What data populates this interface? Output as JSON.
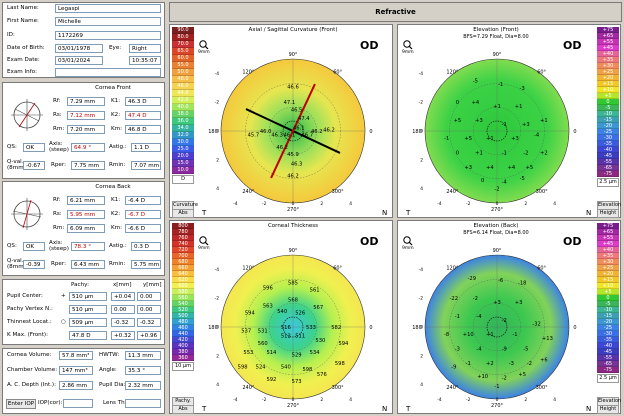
{
  "patient": {
    "last_name_label": "Last Name:",
    "last_name": "Legaspi",
    "first_name_label": "First Name:",
    "first_name": "Michelle",
    "id_label": "ID:",
    "id": "1172269",
    "dob_label": "Date of Birth:",
    "dob": "03/01/1978",
    "eye_label": "Eye:",
    "eye": "Right",
    "exam_date_label": "Exam Date:",
    "exam_date": "03/01/2024",
    "exam_time": "10:35:07",
    "exam_info_label": "Exam Info:",
    "exam_info": ""
  },
  "cornea_front": {
    "title": "Cornea Front",
    "rf_label": "Rf:",
    "rf": "7.29 mm",
    "k1_label": "K1:",
    "k1": "46.3 D",
    "rs_label": "Rs:",
    "rs": "7.12 mm",
    "k2_label": "K2:",
    "k2": "47.4 D",
    "rm_label": "Rm:",
    "rm": "7.20 mm",
    "km_label": "Km:",
    "km": "46.8 D",
    "qs_label": "QS:",
    "qs": "OK",
    "axis_label": "Axis: (steep)",
    "axis": "64.9 °",
    "astig_label": "Astig.:",
    "astig": "1.1 D",
    "qval_label": "Q-val. (8mm)",
    "qval": "-0.67",
    "rper_label": "Rper:",
    "rper": "7.75 mm",
    "rmin_label": "Rmin:",
    "rmin": "7.07 mm"
  },
  "cornea_back": {
    "title": "Cornea Back",
    "rf_label": "Rf:",
    "rf": "6.21 mm",
    "k1_label": "K1:",
    "k1": "-6.4 D",
    "rs_label": "Rs:",
    "rs": "5.95 mm",
    "k2_label": "K2:",
    "k2": "-6.7 D",
    "rm_label": "Rm:",
    "rm": "6.09 mm",
    "km_label": "Km:",
    "km": "-6.6 D",
    "qs_label": "QS:",
    "qs": "OK",
    "axis_label": "Axis: (steep)",
    "axis": "78.3 °",
    "astig_label": "Astig.:",
    "astig": "0.3 D",
    "qval_label": "Q-val. (8mm)",
    "qval": "-0.39",
    "rper_label": "Rper:",
    "rper": "6.43 mm",
    "rmin_label": "Rmin:",
    "rmin": "5.75 mm"
  },
  "pachy": {
    "col_pachy": "Pachy:",
    "col_x": "x[mm]",
    "col_y": "y[mm]",
    "rows": [
      {
        "label": "Pupil Center:",
        "sym": "+",
        "pachy": "510 µm",
        "x": "+0.04",
        "y": "0.00"
      },
      {
        "label": "Pachy Vertex N.:",
        "sym": "",
        "pachy": "510 µm",
        "x": "0.00",
        "y": "0.00"
      },
      {
        "label": "Thinnest Locat.:",
        "sym": "○",
        "pachy": "509 µm",
        "x": "-0.32",
        "y": "-0.32"
      },
      {
        "label": "K Max. (Front):",
        "sym": "",
        "pachy": "47.8 D",
        "x": "+0.32",
        "y": "+0.96"
      }
    ]
  },
  "volumes": {
    "cornea_volume_label": "Cornea Volume:",
    "cornea_volume": "57.8 mm³",
    "hwtw_label": "HWTW:",
    "hwtw": "11.3 mm",
    "chamber_volume_label": "Chamber Volume:",
    "chamber_volume": "147 mm³",
    "angle_label": "Angle:",
    "angle": "35.3 °",
    "acd_label": "A. C. Depth (Int.):",
    "acd": "2.86 mm",
    "pupil_dia_label": "Pupil Dia:",
    "pupil_dia": "2.32 mm",
    "iop_label": "Enter IOP",
    "iopcor_label": "IOP(cor):",
    "iopcor": "",
    "lens_th_label": "Lens Th.:",
    "lens_th": ""
  },
  "header": {
    "title": "Refractive"
  },
  "maps": {
    "axial": {
      "title": "Axial / Sagittal Curvature (Front)",
      "eye": "OD",
      "zoom": "9mm",
      "scale_values": [
        "90.0",
        "80.0",
        "70.0",
        "65.0",
        "60.0",
        "55.0",
        "50.0",
        "48.0",
        "46.0",
        "44.0",
        "42.0",
        "40.0",
        "38.0",
        "36.0",
        "34.0",
        "32.0",
        "30.0",
        "25.0",
        "20.0",
        "15.0",
        "10.0"
      ],
      "unit": "D",
      "footer": [
        "Curvature",
        "Abs"
      ],
      "angles": {
        "top": "90°",
        "right": "0",
        "left": "180",
        "bottom": "270°",
        "tl": "120°",
        "tr": "60°",
        "bl": "240°",
        "br": "300°"
      },
      "corners": {
        "left": "T",
        "right": "N"
      },
      "axis_ticks": [
        "-4",
        "-2",
        "0",
        "2",
        "4"
      ],
      "values": [
        "46.6",
        "47.1",
        "46.5",
        "45.7",
        "46.0",
        "46.3",
        "46.1",
        "46.1",
        "46.7",
        "46.2",
        "46.2",
        "47.4",
        "46.2",
        "45.9",
        "46.3",
        "46.2"
      ]
    },
    "thickness": {
      "title": "Corneal Thickness",
      "eye": "OD",
      "zoom": "9mm",
      "scale_values": [
        "800",
        "780",
        "760",
        "740",
        "720",
        "700",
        "680",
        "660",
        "640",
        "620",
        "600",
        "580",
        "560",
        "540",
        "520",
        "500",
        "480",
        "460",
        "440",
        "420",
        "400",
        "380",
        "360"
      ],
      "unit": "10 µm",
      "footer": [
        "Pachy.",
        "Abs"
      ],
      "angles": {
        "top": "90°",
        "right": "0",
        "left": "180",
        "bottom": "270°",
        "tl": "120°",
        "tr": "60°",
        "bl": "240°",
        "br": "300°"
      },
      "corners": {
        "left": "T",
        "right": "N"
      },
      "axis_ticks": [
        "-4",
        "-2",
        "0",
        "2",
        "4"
      ],
      "values": [
        "596",
        "585",
        "561",
        "594",
        "563",
        "568",
        "540",
        "526",
        "567",
        "537",
        "531",
        "516",
        "533",
        "582",
        "560",
        "512",
        "511",
        "530",
        "594",
        "553",
        "514",
        "529",
        "534",
        "524",
        "540",
        "598",
        "592",
        "573",
        "576",
        "598",
        "598"
      ]
    },
    "elev_front": {
      "title": "Elevation (Front)",
      "subtitle": "BFS=7.29 Float, Dia=8.00",
      "eye": "OD",
      "zoom": "9mm",
      "scale_values": [
        "+75",
        "+65",
        "+55",
        "+45",
        "+40",
        "+35",
        "+30",
        "+25",
        "+20",
        "+15",
        "+10",
        "+5",
        "0",
        "-5",
        "-10",
        "-15",
        "-20",
        "-25",
        "-30",
        "-35",
        "-40",
        "-45",
        "-55",
        "-65",
        "-75"
      ],
      "unit": "2.5 µm",
      "footer": [
        "Elevation",
        "Height"
      ],
      "angles": {
        "top": "90°",
        "right": "0",
        "left": "180",
        "bottom": "270°",
        "tl": "120°",
        "tr": "60°",
        "bl": "240°",
        "br": "300°"
      },
      "corners": {
        "left": "T",
        "right": "N"
      },
      "axis_ticks": [
        "-4",
        "-2",
        "0",
        "2",
        "4"
      ],
      "values": [
        "-5",
        "-1",
        "-3",
        "0",
        "+4",
        "+1",
        "+1",
        "+5",
        "+3",
        "-1",
        "+3",
        "+1",
        "-1",
        "+5",
        "+1",
        "+3",
        "-4",
        "0",
        "+1",
        "-1",
        "-2",
        "+2",
        "+3",
        "+4",
        "+4",
        "+5",
        "0",
        "-4",
        "-5",
        "-2"
      ]
    },
    "elev_back": {
      "title": "Elevation (Back)",
      "subtitle": "BFS=6.14 Float, Dia=8.00",
      "eye": "OD",
      "zoom": "9mm",
      "scale_values": [
        "+75",
        "+65",
        "+55",
        "+45",
        "+40",
        "+35",
        "+30",
        "+25",
        "+20",
        "+15",
        "+10",
        "+5",
        "0",
        "-5",
        "-10",
        "-15",
        "-20",
        "-25",
        "-30",
        "-35",
        "-40",
        "-45",
        "-55",
        "-65",
        "-75"
      ],
      "unit": "2.5 µm",
      "footer": [
        "Elevation",
        "Height"
      ],
      "angles": {
        "top": "90°",
        "right": "0",
        "left": "180",
        "bottom": "270°",
        "tl": "120°",
        "tr": "60°",
        "bl": "240°",
        "br": "300°"
      },
      "corners": {
        "left": "T",
        "right": "N"
      },
      "axis_ticks": [
        "-4",
        "-2",
        "0",
        "2",
        "4"
      ],
      "values": [
        "-29",
        "-6",
        "-18",
        "-22",
        "-2",
        "+3",
        "+3",
        "-1",
        "-4",
        "-2",
        "-32",
        "-8",
        "+10",
        "+1",
        "-1",
        "+13",
        "-3",
        "-4",
        "-9",
        "-5",
        "-1",
        "+2",
        "-3",
        "-2",
        "+6",
        "+10",
        "-2",
        "+5",
        "-1",
        "-9"
      ]
    }
  },
  "colors": {
    "panel_bg": "#d4d0c8",
    "red_text": "#c00000",
    "title_bg": "#d4d0c8"
  }
}
